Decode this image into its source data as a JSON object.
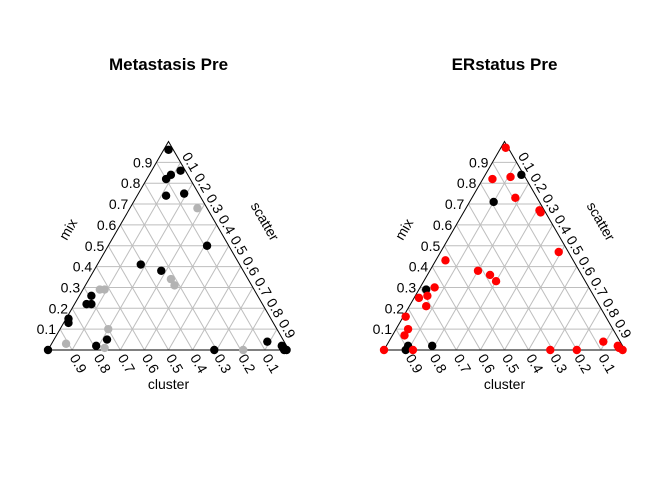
{
  "chart_data": [
    {
      "type": "scatter",
      "subtype": "ternary",
      "title": "Metastasis Pre",
      "axes": {
        "left": "mix",
        "right": "scatter",
        "bottom": "cluster"
      },
      "ticks": [
        "0.1",
        "0.2",
        "0.3",
        "0.4",
        "0.5",
        "0.6",
        "0.7",
        "0.8",
        "0.9"
      ],
      "grid": true,
      "colors": {
        "group_a": "#000000",
        "group_b": "#b3b3b3"
      },
      "points": [
        {
          "mix": 0.96,
          "scatter": 0.02,
          "color": "group_a"
        },
        {
          "mix": 0.82,
          "scatter": 0.08,
          "color": "group_a"
        },
        {
          "mix": 0.84,
          "scatter": 0.09,
          "color": "group_a"
        },
        {
          "mix": 0.86,
          "scatter": 0.12,
          "color": "group_a"
        },
        {
          "mix": 0.74,
          "scatter": 0.12,
          "color": "group_a"
        },
        {
          "mix": 0.75,
          "scatter": 0.19,
          "color": "group_a"
        },
        {
          "mix": 0.68,
          "scatter": 0.28,
          "color": "group_b"
        },
        {
          "mix": 0.5,
          "scatter": 0.41,
          "color": "group_a"
        },
        {
          "mix": 0.41,
          "scatter": 0.18,
          "color": "group_a"
        },
        {
          "mix": 0.38,
          "scatter": 0.28,
          "color": "group_a"
        },
        {
          "mix": 0.34,
          "scatter": 0.34,
          "color": "group_b"
        },
        {
          "mix": 0.31,
          "scatter": 0.37,
          "color": "group_b"
        },
        {
          "mix": 0.29,
          "scatter": 0.09,
          "color": "group_b"
        },
        {
          "mix": 0.29,
          "scatter": 0.07,
          "color": "group_b"
        },
        {
          "mix": 0.26,
          "scatter": 0.05,
          "color": "group_a"
        },
        {
          "mix": 0.22,
          "scatter": 0.05,
          "color": "group_a"
        },
        {
          "mix": 0.22,
          "scatter": 0.07,
          "color": "group_a"
        },
        {
          "mix": 0.15,
          "scatter": 0.01,
          "color": "group_a"
        },
        {
          "mix": 0.13,
          "scatter": 0.02,
          "color": "group_a"
        },
        {
          "mix": 0.1,
          "scatter": 0.2,
          "color": "group_b"
        },
        {
          "mix": 0.05,
          "scatter": 0.22,
          "color": "group_a"
        },
        {
          "mix": 0.03,
          "scatter": 0.06,
          "color": "group_b"
        },
        {
          "mix": 0.0,
          "scatter": 0.0,
          "color": "group_a"
        },
        {
          "mix": 0.02,
          "scatter": 0.19,
          "color": "group_a"
        },
        {
          "mix": 0.01,
          "scatter": 0.23,
          "color": "group_b"
        },
        {
          "mix": 0.0,
          "scatter": 0.69,
          "color": "group_a"
        },
        {
          "mix": 0.0,
          "scatter": 0.81,
          "color": "group_b"
        },
        {
          "mix": 0.04,
          "scatter": 0.89,
          "color": "group_a"
        },
        {
          "mix": 0.02,
          "scatter": 0.96,
          "color": "group_a"
        },
        {
          "mix": 0.01,
          "scatter": 0.97,
          "color": "group_a"
        },
        {
          "mix": 0.0,
          "scatter": 0.98,
          "color": "group_a"
        },
        {
          "mix": 0.0,
          "scatter": 0.99,
          "color": "group_a"
        }
      ]
    },
    {
      "type": "scatter",
      "subtype": "ternary",
      "title": "ERstatus Pre",
      "axes": {
        "left": "mix",
        "right": "scatter",
        "bottom": "cluster"
      },
      "ticks": [
        "0.1",
        "0.2",
        "0.3",
        "0.4",
        "0.5",
        "0.6",
        "0.7",
        "0.8",
        "0.9"
      ],
      "grid": true,
      "colors": {
        "group_a": "#000000",
        "group_b": "#ff0000"
      },
      "points": [
        {
          "mix": 0.97,
          "scatter": 0.02,
          "color": "group_b"
        },
        {
          "mix": 0.82,
          "scatter": 0.04,
          "color": "group_b"
        },
        {
          "mix": 0.83,
          "scatter": 0.11,
          "color": "group_b"
        },
        {
          "mix": 0.84,
          "scatter": 0.15,
          "color": "group_a"
        },
        {
          "mix": 0.71,
          "scatter": 0.1,
          "color": "group_a"
        },
        {
          "mix": 0.73,
          "scatter": 0.18,
          "color": "group_b"
        },
        {
          "mix": 0.66,
          "scatter": 0.32,
          "color": "group_b"
        },
        {
          "mix": 0.67,
          "scatter": 0.31,
          "color": "group_b"
        },
        {
          "mix": 0.47,
          "scatter": 0.49,
          "color": "group_b"
        },
        {
          "mix": 0.43,
          "scatter": 0.04,
          "color": "group_b"
        },
        {
          "mix": 0.38,
          "scatter": 0.2,
          "color": "group_b"
        },
        {
          "mix": 0.36,
          "scatter": 0.26,
          "color": "group_b"
        },
        {
          "mix": 0.33,
          "scatter": 0.3,
          "color": "group_b"
        },
        {
          "mix": 0.3,
          "scatter": 0.06,
          "color": "group_b"
        },
        {
          "mix": 0.29,
          "scatter": 0.03,
          "color": "group_a"
        },
        {
          "mix": 0.25,
          "scatter": 0.02,
          "color": "group_b"
        },
        {
          "mix": 0.26,
          "scatter": 0.05,
          "color": "group_b"
        },
        {
          "mix": 0.21,
          "scatter": 0.07,
          "color": "group_b"
        },
        {
          "mix": 0.16,
          "scatter": 0.01,
          "color": "group_b"
        },
        {
          "mix": 0.1,
          "scatter": 0.05,
          "color": "group_b"
        },
        {
          "mix": 0.07,
          "scatter": 0.05,
          "color": "group_b"
        },
        {
          "mix": 0.02,
          "scatter": 0.09,
          "color": "group_a"
        },
        {
          "mix": 0.0,
          "scatter": 0.09,
          "color": "group_a"
        },
        {
          "mix": 0.0,
          "scatter": 0.12,
          "color": "group_b"
        },
        {
          "mix": 0.02,
          "scatter": 0.19,
          "color": "group_a"
        },
        {
          "mix": 0.0,
          "scatter": 0.0,
          "color": "group_b"
        },
        {
          "mix": 0.0,
          "scatter": 0.69,
          "color": "group_b"
        },
        {
          "mix": 0.0,
          "scatter": 0.8,
          "color": "group_b"
        },
        {
          "mix": 0.04,
          "scatter": 0.89,
          "color": "group_b"
        },
        {
          "mix": 0.02,
          "scatter": 0.96,
          "color": "group_b"
        },
        {
          "mix": 0.01,
          "scatter": 0.97,
          "color": "group_b"
        },
        {
          "mix": 0.0,
          "scatter": 0.99,
          "color": "group_b"
        }
      ]
    }
  ]
}
